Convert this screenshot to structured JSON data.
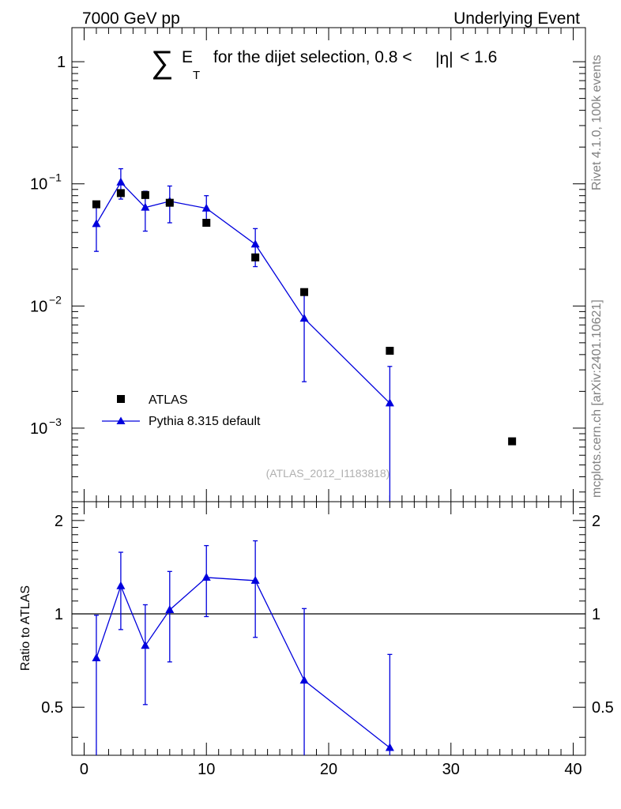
{
  "header": {
    "left": "7000 GeV pp",
    "right": "Underlying Event",
    "rivet": "Rivet 4.1.0,  100k events",
    "mcplots": "mcplots.cern.ch [arXiv:2401.10621]"
  },
  "title": {
    "sum": "∑",
    "e": "E",
    "sub_t": "T",
    "text": "for the dijet selection, 0.8 <",
    "eta": "|η|",
    "tail": "< 1.6"
  },
  "analysis_label": "(ATLAS_2012_I1183818)",
  "legend": {
    "data_label": "ATLAS",
    "mc_label": "Pythia 8.315 default"
  },
  "colors": {
    "data": "#000000",
    "mc": "#0000dd"
  },
  "chart_data": [
    {
      "type": "scatter",
      "panel": "main",
      "title": "∑ E_T for the dijet selection, 0.8 < |η| < 1.6",
      "xlim": [
        -1,
        41
      ],
      "ylim": [
        0.00025,
        1.9
      ],
      "yscale": "log",
      "yticks": [
        {
          "v": 0.001,
          "base": "10",
          "exp": "−3"
        },
        {
          "v": 0.01,
          "base": "10",
          "exp": "−2"
        },
        {
          "v": 0.1,
          "base": "10",
          "exp": "−1"
        },
        {
          "v": 1,
          "base": "1",
          "exp": ""
        }
      ],
      "series": [
        {
          "name": "ATLAS",
          "marker": "square",
          "x": [
            1,
            3,
            5,
            7,
            10,
            14,
            18,
            25,
            35
          ],
          "y": [
            0.068,
            0.084,
            0.081,
            0.07,
            0.048,
            0.025,
            0.013,
            0.0043,
            0.00078
          ]
        },
        {
          "name": "Pythia 8.315 default",
          "marker": "triangle",
          "line": true,
          "x": [
            1,
            3,
            5,
            7,
            10,
            14,
            18,
            25
          ],
          "y": [
            0.047,
            0.103,
            0.064,
            0.072,
            0.063,
            0.032,
            0.0079,
            0.0016
          ],
          "yerr_low": [
            0.028,
            0.075,
            0.041,
            0.048,
            0.047,
            0.021,
            0.0024,
            0.0001
          ],
          "yerr_high": [
            0.068,
            0.133,
            0.087,
            0.096,
            0.08,
            0.043,
            0.0136,
            0.0032
          ]
        }
      ]
    },
    {
      "type": "line",
      "panel": "ratio",
      "ylabel": "Ratio to ATLAS",
      "xlim": [
        -1,
        41
      ],
      "ylim": [
        0.35,
        2.3
      ],
      "yscale": "log",
      "yticks": [
        {
          "v": 0.5,
          "label": "0.5"
        },
        {
          "v": 1,
          "label": "1"
        },
        {
          "v": 2,
          "label": "2"
        }
      ],
      "xticks": [
        0,
        10,
        20,
        30,
        40
      ],
      "reference": 1,
      "series": [
        {
          "name": "Pythia 8.315 default / ATLAS",
          "x": [
            1,
            3,
            5,
            7,
            10,
            14,
            18,
            25
          ],
          "y": [
            0.72,
            1.23,
            0.79,
            1.03,
            1.31,
            1.28,
            0.61,
            0.37
          ],
          "yerr_low": [
            0.33,
            0.89,
            0.51,
            0.7,
            0.98,
            0.84,
            0.35,
            0.02
          ],
          "yerr_high": [
            0.99,
            1.58,
            1.07,
            1.37,
            1.66,
            1.72,
            1.04,
            0.74
          ]
        }
      ]
    }
  ]
}
